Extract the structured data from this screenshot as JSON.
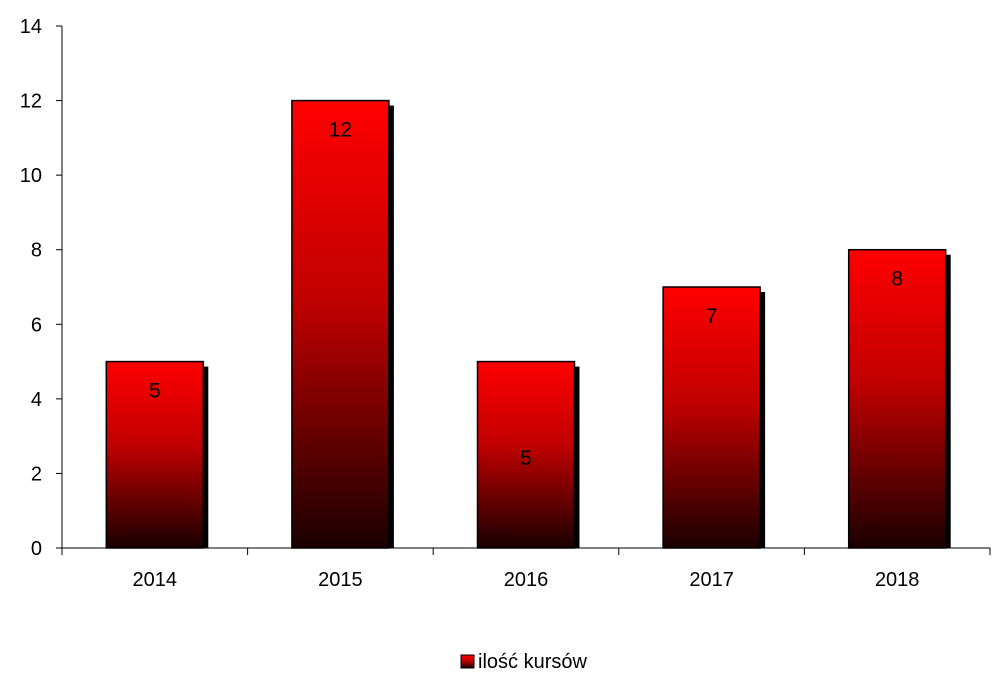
{
  "chart_data": {
    "type": "bar",
    "categories": [
      "2014",
      "2015",
      "2016",
      "2017",
      "2018"
    ],
    "series": [
      {
        "name": "ilość kursów",
        "values": [
          5,
          12,
          5,
          7,
          8
        ]
      }
    ],
    "data_labels": [
      "5",
      "12",
      "5",
      "7",
      "8"
    ],
    "y_ticks": [
      "0",
      "2",
      "4",
      "6",
      "8",
      "10",
      "12",
      "14"
    ],
    "ylim": [
      0,
      14
    ],
    "title": "",
    "xlabel": "",
    "ylabel": "",
    "grid": false,
    "legend_position": "bottom",
    "bar_color_top": "#ff0000",
    "bar_color_bottom": "#1a0000",
    "shadow_color": "#000000"
  }
}
